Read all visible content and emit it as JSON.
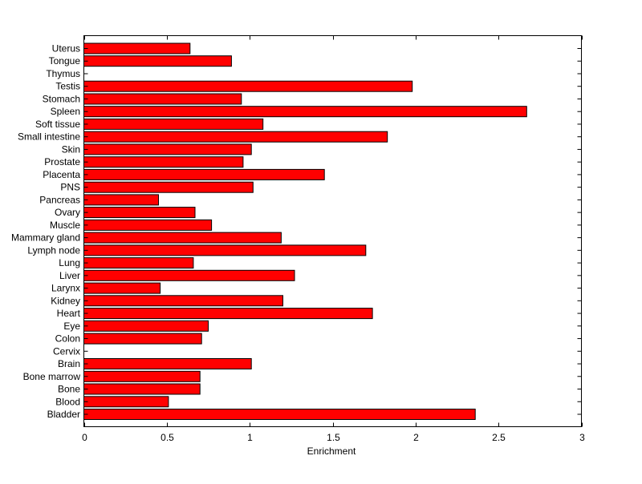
{
  "chart_data": {
    "type": "bar",
    "orientation": "horizontal",
    "title": "",
    "xlabel": "Enrichment",
    "ylabel": "",
    "xlim": [
      0,
      3
    ],
    "xticks": [
      "0",
      "0.5",
      "1",
      "1.5",
      "2",
      "2.5",
      "3"
    ],
    "grid": false,
    "bar_color": "#ff0000",
    "categories": [
      "Bladder",
      "Blood",
      "Bone",
      "Bone marrow",
      "Brain",
      "Cervix",
      "Colon",
      "Eye",
      "Heart",
      "Kidney",
      "Larynx",
      "Liver",
      "Lung",
      "Lymph node",
      "Mammary gland",
      "Muscle",
      "Ovary",
      "Pancreas",
      "PNS",
      "Placenta",
      "Prostate",
      "Skin",
      "Small intestine",
      "Soft tissue",
      "Spleen",
      "Stomach",
      "Testis",
      "Thymus",
      "Tongue",
      "Uterus"
    ],
    "values": [
      2.36,
      0.51,
      0.7,
      0.7,
      1.01,
      0,
      0.71,
      0.75,
      1.74,
      1.2,
      0.46,
      1.27,
      0.66,
      1.7,
      1.19,
      0.77,
      0.67,
      0.45,
      1.02,
      1.45,
      0.96,
      1.01,
      1.83,
      1.08,
      2.67,
      0.95,
      1.98,
      0,
      0.89,
      0.64
    ]
  }
}
